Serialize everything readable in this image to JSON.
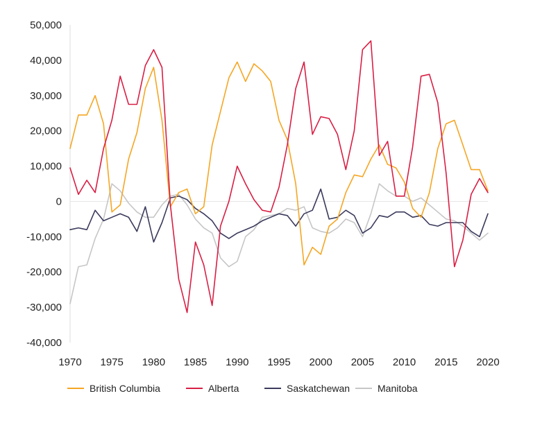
{
  "chart_data": {
    "type": "line",
    "title": "",
    "xlabel": "",
    "ylabel": "",
    "xlim": [
      1970,
      2020
    ],
    "ylim": [
      -40000,
      50000
    ],
    "x_ticks": [
      "1970",
      "1975",
      "1980",
      "1985",
      "1990",
      "1995",
      "2000",
      "2005",
      "2010",
      "2015",
      "2020"
    ],
    "y_ticks": [
      "50,000",
      "40,000",
      "30,000",
      "20,000",
      "10,000",
      "0",
      "-10,000",
      "-20,000",
      "-30,000",
      "-40,000"
    ],
    "grid": false,
    "legend_position": "bottom",
    "x": [
      1970,
      1971,
      1972,
      1973,
      1974,
      1975,
      1976,
      1977,
      1978,
      1979,
      1980,
      1981,
      1982,
      1983,
      1984,
      1985,
      1986,
      1987,
      1988,
      1989,
      1990,
      1991,
      1992,
      1993,
      1994,
      1995,
      1996,
      1997,
      1998,
      1999,
      2000,
      2001,
      2002,
      2003,
      2004,
      2005,
      2006,
      2007,
      2008,
      2009,
      2010,
      2011,
      2012,
      2013,
      2014,
      2015,
      2016,
      2017,
      2018,
      2019,
      2020
    ],
    "series": [
      {
        "name": "British Columbia",
        "color": "#f5a623",
        "values": [
          15000,
          24500,
          24500,
          30000,
          22000,
          -3000,
          -1000,
          12000,
          19500,
          32000,
          38000,
          23000,
          -1500,
          2500,
          3500,
          -3500,
          -1500,
          16000,
          25500,
          35000,
          39500,
          34000,
          39000,
          37000,
          34000,
          23000,
          17500,
          5000,
          -18000,
          -13000,
          -15000,
          -7000,
          -5000,
          2500,
          7500,
          7000,
          12000,
          16000,
          10500,
          9500,
          5500,
          -2000,
          -4500,
          2500,
          15000,
          22000,
          23000,
          16000,
          9000,
          9000,
          3000
        ]
      },
      {
        "name": "Alberta",
        "color": "#d81e44",
        "values": [
          9500,
          2000,
          6000,
          2500,
          15000,
          23000,
          35500,
          27500,
          27500,
          38500,
          43000,
          38000,
          -1000,
          -22000,
          -31500,
          -11500,
          -18000,
          -29500,
          -7000,
          0,
          10000,
          5000,
          500,
          -2500,
          -3000,
          4000,
          16000,
          32000,
          39500,
          19000,
          24000,
          23500,
          19000,
          9000,
          20000,
          43000,
          45500,
          13000,
          17000,
          1500,
          1500,
          15500,
          35500,
          36000,
          28000,
          8000,
          -18500,
          -11000,
          2000,
          6500,
          2500
        ]
      },
      {
        "name": "Saskatchewan",
        "color": "#3a3a5c",
        "values": [
          -8000,
          -7500,
          -8000,
          -2500,
          -5500,
          -4500,
          -3500,
          -4500,
          -8500,
          -1500,
          -11500,
          -6000,
          1000,
          1500,
          500,
          -2000,
          -3500,
          -5500,
          -9000,
          -10500,
          -9000,
          -8000,
          -7000,
          -5500,
          -4500,
          -3500,
          -4000,
          -7000,
          -3500,
          -2500,
          3500,
          -5000,
          -4500,
          -2500,
          -4000,
          -9000,
          -7500,
          -4000,
          -4500,
          -3000,
          -3000,
          -4500,
          -4000,
          -6500,
          -7000,
          -6000,
          -6000,
          -6000,
          -8500,
          -10000,
          -3500
        ]
      },
      {
        "name": "Manitoba",
        "color": "#c6c6c6",
        "values": [
          -29000,
          -18500,
          -18000,
          -10500,
          -5000,
          5000,
          3000,
          -500,
          -3000,
          -4500,
          -4500,
          -1000,
          1500,
          2000,
          -1000,
          -5000,
          -7500,
          -9000,
          -16000,
          -18500,
          -17000,
          -10000,
          -8000,
          -4500,
          -4000,
          -3500,
          -2000,
          -2500,
          -1500,
          -7500,
          -8500,
          -9000,
          -7500,
          -5000,
          -6000,
          -10000,
          -3500,
          5000,
          3000,
          1500,
          1500,
          0,
          1000,
          -1000,
          -3000,
          -5000,
          -5500,
          -7000,
          -9000,
          -11000,
          -9000
        ]
      }
    ]
  }
}
